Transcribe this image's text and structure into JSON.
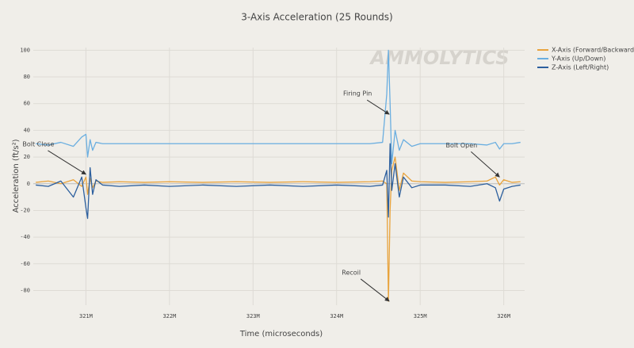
{
  "chart_data": {
    "type": "line",
    "title": "3-Axis Acceleration (25 Rounds)",
    "xlabel": "Time (microseconds)",
    "ylabel": "Acceleration (ft/s²)",
    "watermark": "AMMOLYTICS",
    "grid": true,
    "legend": "top-right",
    "xlim": [
      320370000,
      326250000
    ],
    "ylim": [
      -91,
      102
    ],
    "xticks": [
      {
        "value": 321000000,
        "label": "321M"
      },
      {
        "value": 322000000,
        "label": "322M"
      },
      {
        "value": 323000000,
        "label": "323M"
      },
      {
        "value": 324000000,
        "label": "324M"
      },
      {
        "value": 325000000,
        "label": "325M"
      },
      {
        "value": 326000000,
        "label": "326M"
      }
    ],
    "yticks": [
      100,
      80,
      60,
      40,
      20,
      0,
      -20,
      -40,
      -60,
      -80
    ],
    "x": [
      320400000,
      320550000,
      320700000,
      320850000,
      320950000,
      321000000,
      321020000,
      321050000,
      321080000,
      321120000,
      321200000,
      321400000,
      321700000,
      322000000,
      322400000,
      322800000,
      323200000,
      323600000,
      324000000,
      324400000,
      324550000,
      324600000,
      324620000,
      324640000,
      324660000,
      324700000,
      324750000,
      324800000,
      324900000,
      325000000,
      325300000,
      325600000,
      325800000,
      325900000,
      325950000,
      326000000,
      326100000,
      326200000
    ],
    "series": [
      {
        "name": "X-Axis (Forward/Backward)",
        "color": "#e8a33d",
        "values": [
          1,
          2,
          0,
          3,
          -2,
          5,
          -8,
          4,
          -3,
          2,
          1,
          1.5,
          1,
          1.5,
          1,
          1.5,
          1,
          1.5,
          1,
          1.5,
          2,
          0,
          -88,
          -20,
          10,
          20,
          -5,
          8,
          2,
          1.5,
          1,
          1.5,
          2,
          5,
          -1,
          3,
          1,
          1.5
        ]
      },
      {
        "name": "Y-Axis (Up/Down)",
        "color": "#6aaee0",
        "values": [
          30,
          29,
          31,
          28,
          35,
          37,
          20,
          33,
          25,
          31,
          30,
          30,
          30,
          30,
          30,
          30,
          30,
          30,
          30,
          30,
          31,
          67,
          100,
          60,
          15,
          40,
          25,
          33,
          28,
          30,
          30,
          30,
          29,
          31,
          26,
          30,
          30,
          31
        ]
      },
      {
        "name": "Z-Axis (Left/Right)",
        "color": "#2c5f9e",
        "values": [
          -1,
          -2,
          2,
          -10,
          5,
          -18,
          -26,
          12,
          -8,
          3,
          -1,
          -2,
          -1,
          -2,
          -1,
          -2,
          -1,
          -2,
          -1,
          -2,
          -1,
          10,
          -25,
          30,
          -5,
          15,
          -10,
          5,
          -3,
          -1,
          -1,
          -2,
          0,
          -3,
          -13,
          -4,
          -2,
          -1
        ]
      }
    ],
    "annotations": [
      {
        "text": "Bolt Close",
        "x": 321000000,
        "y": 7
      },
      {
        "text": "Firing Pin",
        "x": 324630000,
        "y": 52
      },
      {
        "text": "Bolt Open",
        "x": 325950000,
        "y": 5
      },
      {
        "text": "Recoil",
        "x": 324630000,
        "y": -88
      }
    ]
  }
}
